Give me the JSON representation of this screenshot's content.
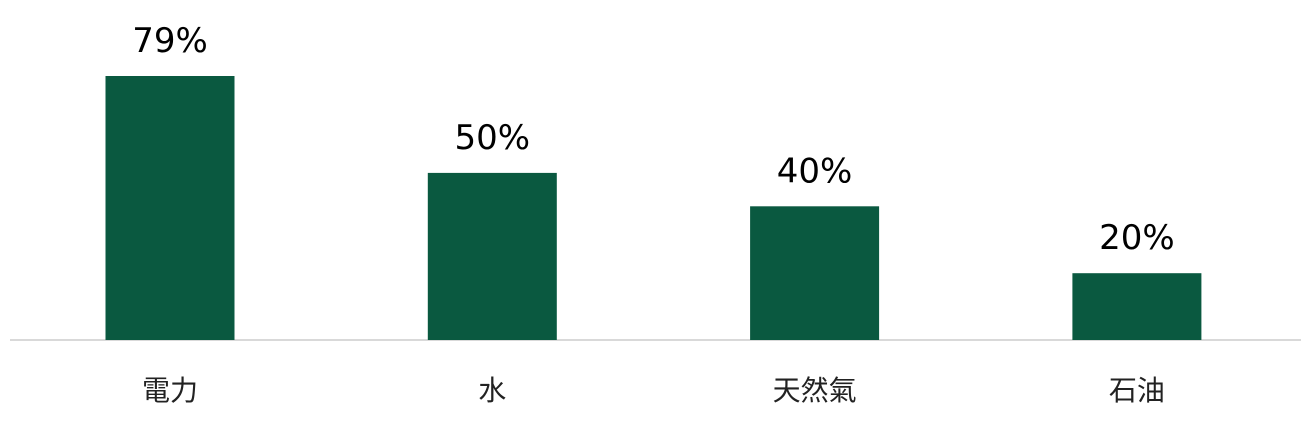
{
  "chart_data": {
    "type": "bar",
    "categories": [
      "電力",
      "水",
      "天然氣",
      "石油"
    ],
    "values": [
      79,
      50,
      40,
      20
    ],
    "value_labels": [
      "79%",
      "50%",
      "40%",
      "20%"
    ],
    "title": "",
    "xlabel": "",
    "ylabel": "",
    "ylim": [
      0,
      79
    ],
    "grid": false,
    "legend": "none"
  },
  "colors": {
    "bar": "#0a5940",
    "baseline": "#d9d9d9"
  }
}
